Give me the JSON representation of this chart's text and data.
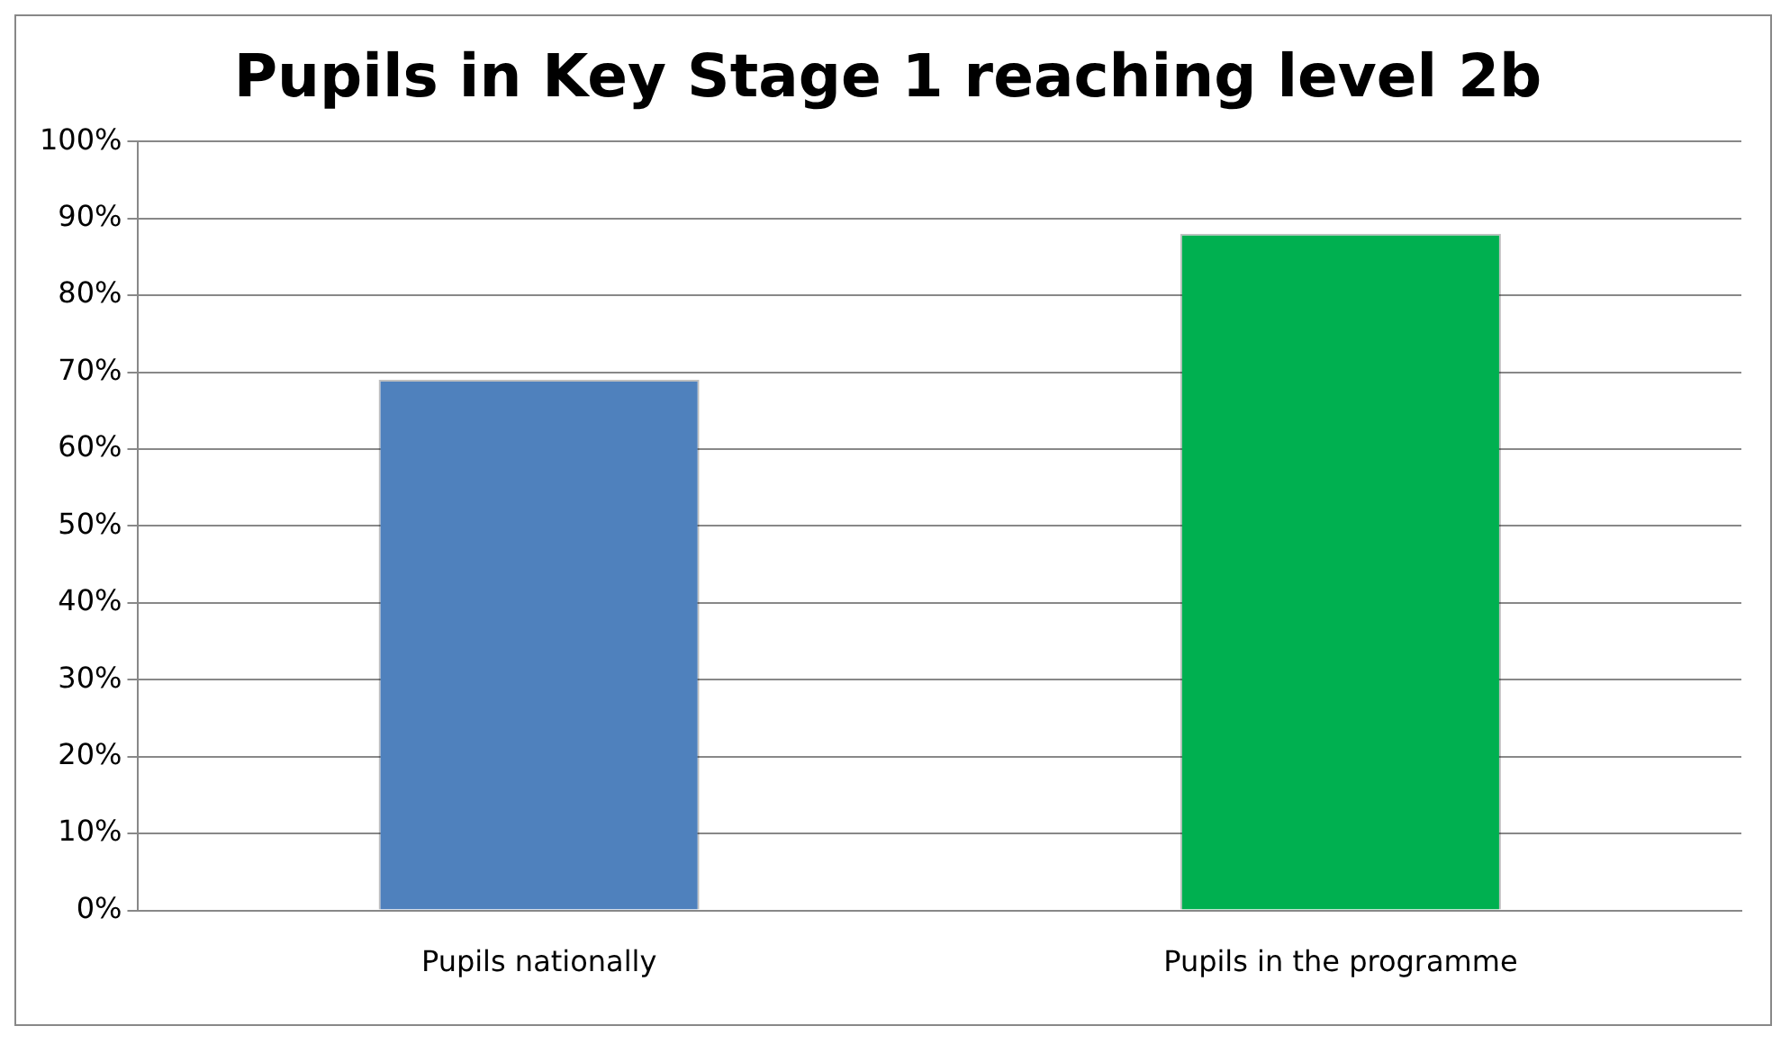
{
  "chart_data": {
    "type": "bar",
    "title": "Pupils in Key Stage 1 reaching level 2b",
    "categories": [
      "Pupils nationally",
      "Pupils in the programme"
    ],
    "values": [
      69,
      88
    ],
    "colors": [
      "#4f81bd",
      "#00b050"
    ],
    "ylim": [
      0,
      100
    ],
    "yticks": [
      {
        "value": 0,
        "label": "0%"
      },
      {
        "value": 10,
        "label": "10%"
      },
      {
        "value": 20,
        "label": "20%"
      },
      {
        "value": 30,
        "label": "30%"
      },
      {
        "value": 40,
        "label": "40%"
      },
      {
        "value": 50,
        "label": "50%"
      },
      {
        "value": 60,
        "label": "60%"
      },
      {
        "value": 70,
        "label": "70%"
      },
      {
        "value": 80,
        "label": "80%"
      },
      {
        "value": 90,
        "label": "90%"
      },
      {
        "value": 100,
        "label": "100%"
      }
    ],
    "grid": "y",
    "legend": false
  }
}
